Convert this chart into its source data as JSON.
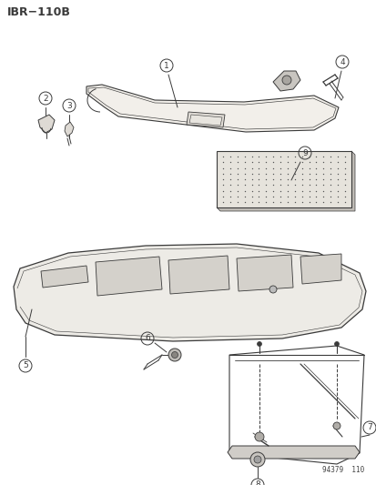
{
  "title": "IBR−110B",
  "bg_color": "#ffffff",
  "line_color": "#3a3a3a",
  "watermark": "94379  110",
  "fig_width": 4.14,
  "fig_height": 5.33,
  "dpi": 100,
  "face_color": "#f2efea",
  "shadow_color": "#dedad4",
  "dot_color": "#555555"
}
